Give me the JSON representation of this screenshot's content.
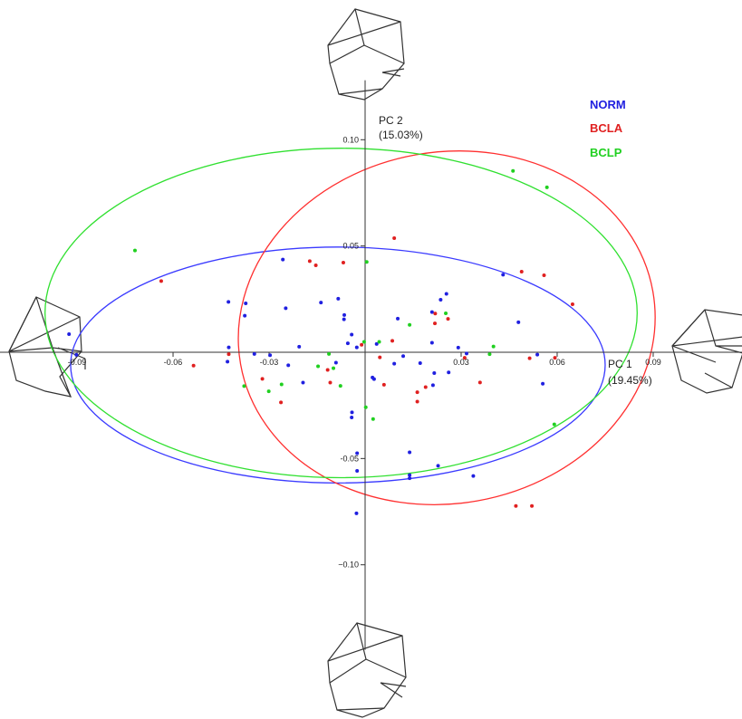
{
  "chart_data": {
    "type": "scatter",
    "title": "",
    "xlabel": [
      "PC 1",
      "(19.45%)"
    ],
    "ylabel": [
      "PC 2",
      "(15.03%)"
    ],
    "xlim": [
      -0.115,
      0.145
    ],
    "ylim": [
      -0.14,
      0.128
    ],
    "x_ticks": [
      {
        "value": -0.09,
        "label": "-0.09"
      },
      {
        "value": -0.06,
        "label": "-0.06"
      },
      {
        "value": -0.03,
        "label": "-0.03"
      },
      {
        "value": 0.03,
        "label": "0.03"
      },
      {
        "value": 0.06,
        "label": "0.06"
      },
      {
        "value": 0.09,
        "label": "0.09"
      }
    ],
    "y_ticks": [
      {
        "value": 0.1,
        "label": "0.10"
      },
      {
        "value": 0.05,
        "label": "0.05"
      },
      {
        "value": -0.05,
        "label": "-0.05"
      },
      {
        "value": -0.1,
        "label": "−0.10"
      }
    ],
    "grid": false,
    "legend_position": "top-right",
    "series": [
      {
        "name": "NORM",
        "color": "#2020e0",
        "points": [
          [
            -0.0925,
            0.0085
          ],
          [
            -0.0902,
            -0.0012
          ],
          [
            -0.0427,
            0.0237
          ],
          [
            -0.0426,
            0.0023
          ],
          [
            -0.043,
            -0.0044
          ],
          [
            -0.0373,
            0.023
          ],
          [
            -0.0376,
            0.0172
          ],
          [
            -0.0346,
            -0.0008
          ],
          [
            -0.0297,
            -0.0014
          ],
          [
            -0.0248,
            0.0207
          ],
          [
            -0.024,
            -0.0061
          ],
          [
            -0.0194,
            -0.0143
          ],
          [
            -0.0206,
            0.0026
          ],
          [
            -0.0091,
            -0.0049
          ],
          [
            -0.0084,
            0.0252
          ],
          [
            -0.0066,
            0.0155
          ],
          [
            -0.0065,
            0.0175
          ],
          [
            -0.0054,
            0.0042
          ],
          [
            -0.0042,
            0.0083
          ],
          [
            -0.0041,
            -0.0283
          ],
          [
            -0.0042,
            -0.0307
          ],
          [
            -0.0026,
            0.0023
          ],
          [
            0.0036,
            0.0039
          ],
          [
            0.0023,
            -0.0119
          ],
          [
            0.0028,
            -0.0126
          ],
          [
            0.0091,
            -0.0054
          ],
          [
            0.0119,
            -0.0018
          ],
          [
            0.0102,
            0.0158
          ],
          [
            0.0209,
            0.0045
          ],
          [
            0.0209,
            0.0189
          ],
          [
            0.0236,
            0.0247
          ],
          [
            0.0254,
            0.0275
          ],
          [
            0.0291,
            0.0022
          ],
          [
            0.0172,
            -0.0051
          ],
          [
            0.0216,
            -0.0098
          ],
          [
            0.0261,
            -0.0095
          ],
          [
            0.0212,
            -0.0155
          ],
          [
            0.0317,
            -0.0006
          ],
          [
            0.0479,
            0.0141
          ],
          [
            0.0538,
            -0.0011
          ],
          [
            0.0555,
            -0.0148
          ],
          [
            -0.0257,
            0.0436
          ],
          [
            -0.0138,
            0.0234
          ],
          [
            0.0139,
            -0.0471
          ],
          [
            0.0139,
            -0.0578
          ],
          [
            0.0139,
            -0.0593
          ],
          [
            0.0228,
            -0.0534
          ],
          [
            -0.0025,
            -0.0475
          ],
          [
            -0.0025,
            -0.0558
          ],
          [
            -0.0027,
            -0.0758
          ],
          [
            0.0338,
            -0.0582
          ],
          [
            0.0431,
            0.0365
          ]
        ]
      },
      {
        "name": "BCLA",
        "color": "#e02020",
        "points": [
          [
            -0.0637,
            0.0335
          ],
          [
            -0.0536,
            -0.0063
          ],
          [
            -0.0426,
            -0.0009
          ],
          [
            -0.0321,
            -0.0125
          ],
          [
            -0.0263,
            -0.0236
          ],
          [
            -0.0173,
            0.0429
          ],
          [
            -0.0154,
            0.0409
          ],
          [
            -0.0117,
            -0.0083
          ],
          [
            -0.0109,
            -0.0143
          ],
          [
            -0.0068,
            0.0422
          ],
          [
            -0.0011,
            0.0035
          ],
          [
            0.0046,
            -0.0024
          ],
          [
            0.0085,
            0.0054
          ],
          [
            0.0059,
            -0.0153
          ],
          [
            0.0091,
            0.0537
          ],
          [
            0.0163,
            -0.0188
          ],
          [
            0.0163,
            -0.0232
          ],
          [
            0.0189,
            -0.0164
          ],
          [
            0.0219,
            0.0182
          ],
          [
            0.0218,
            0.0136
          ],
          [
            0.0259,
            0.0157
          ],
          [
            0.0311,
            -0.0026
          ],
          [
            0.0359,
            -0.0142
          ],
          [
            0.0489,
            0.0379
          ],
          [
            0.0559,
            0.0362
          ],
          [
            0.0593,
            -0.0026
          ],
          [
            0.0648,
            0.0226
          ],
          [
            0.0514,
            -0.0028
          ],
          [
            0.0471,
            -0.0723
          ],
          [
            0.0521,
            -0.0723
          ]
        ]
      },
      {
        "name": "BCLP",
        "color": "#20d020",
        "points": [
          [
            -0.0719,
            0.0479
          ],
          [
            -0.0378,
            -0.0159
          ],
          [
            -0.0301,
            -0.0184
          ],
          [
            -0.0261,
            -0.0151
          ],
          [
            -0.0147,
            -0.0066
          ],
          [
            -0.0099,
            -0.0075
          ],
          [
            -0.0113,
            -0.0008
          ],
          [
            -0.0003,
            0.0049
          ],
          [
            0.0044,
            0.0049
          ],
          [
            -0.0077,
            -0.0158
          ],
          [
            0.0002,
            -0.0259
          ],
          [
            0.0025,
            -0.0314
          ],
          [
            0.0139,
            0.0129
          ],
          [
            0.0252,
            0.0183
          ],
          [
            0.0389,
            -0.0009
          ],
          [
            0.0401,
            0.0027
          ],
          [
            0.0462,
            0.0853
          ],
          [
            0.0568,
            0.0776
          ],
          [
            0.0591,
            -0.0339
          ],
          [
            0.0005,
            0.0425
          ]
        ]
      }
    ],
    "ellipses": [
      {
        "series": "NORM",
        "color": "#3a3aff",
        "center": [
          -0.0085,
          -0.006
        ],
        "rx": 0.0835,
        "ry": 0.0555,
        "rotation_deg": 0
      },
      {
        "series": "BCLA",
        "color": "#ff3030",
        "center": [
          0.0255,
          0.0115
        ],
        "rx": 0.0654,
        "ry": 0.0827,
        "rotation_deg": 10
      },
      {
        "series": "BCLP",
        "color": "#30e030",
        "center": [
          -0.0075,
          0.0185
        ],
        "rx": 0.0925,
        "ry": 0.0775,
        "rotation_deg": 0
      }
    ]
  }
}
